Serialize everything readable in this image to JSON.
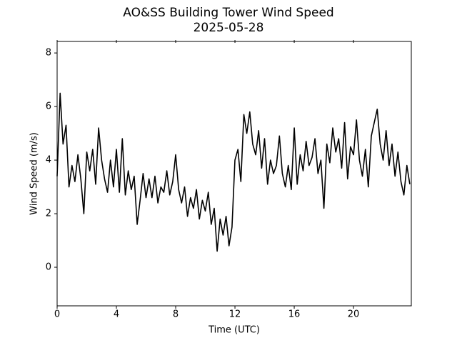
{
  "chart_data": {
    "type": "line",
    "title": "AO&SS Building Tower Wind Speed",
    "subtitle": "2025-05-28",
    "x_label": "Time (UTC)",
    "y_label": "Wind Speed (m/s)",
    "color": "#000000",
    "x": [
      0,
      0.2,
      0.4,
      0.6,
      0.8,
      1.0,
      1.2,
      1.4,
      1.6,
      1.8,
      2.0,
      2.2,
      2.4,
      2.6,
      2.8,
      3.0,
      3.2,
      3.4,
      3.6,
      3.8,
      4.0,
      4.2,
      4.4,
      4.6,
      4.8,
      5.0,
      5.2,
      5.4,
      5.6,
      5.8,
      6.0,
      6.2,
      6.4,
      6.6,
      6.8,
      7.0,
      7.2,
      7.4,
      7.6,
      7.8,
      8.0,
      8.2,
      8.4,
      8.6,
      8.8,
      9.0,
      9.2,
      9.4,
      9.6,
      9.8,
      10.0,
      10.2,
      10.4,
      10.6,
      10.8,
      11.0,
      11.2,
      11.4,
      11.6,
      11.8,
      12.0,
      12.2,
      12.4,
      12.6,
      12.8,
      13.0,
      13.2,
      13.4,
      13.6,
      13.8,
      14.0,
      14.2,
      14.4,
      14.6,
      14.8,
      15.0,
      15.2,
      15.4,
      15.6,
      15.8,
      16.0,
      16.2,
      16.4,
      16.6,
      16.8,
      17.0,
      17.2,
      17.4,
      17.6,
      17.8,
      18.0,
      18.2,
      18.4,
      18.6,
      18.8,
      19.0,
      19.2,
      19.4,
      19.6,
      19.8,
      20.0,
      20.2,
      20.4,
      20.6,
      20.8,
      21.0,
      21.2,
      21.4,
      21.6,
      21.8,
      22.0,
      22.2,
      22.4,
      22.6,
      22.8,
      23.0,
      23.2,
      23.4,
      23.6,
      23.8
    ],
    "values": [
      3.4,
      6.5,
      4.6,
      5.3,
      3.0,
      3.8,
      3.2,
      4.2,
      3.3,
      2.0,
      4.3,
      3.6,
      4.4,
      3.1,
      5.2,
      4.0,
      3.3,
      2.8,
      4.0,
      3.0,
      4.4,
      2.8,
      4.8,
      2.7,
      3.6,
      2.9,
      3.4,
      1.6,
      2.5,
      3.5,
      2.6,
      3.3,
      2.6,
      3.4,
      2.4,
      3.0,
      2.8,
      3.6,
      2.7,
      3.2,
      4.2,
      2.9,
      2.4,
      3.0,
      1.9,
      2.6,
      2.2,
      2.9,
      1.8,
      2.5,
      2.1,
      2.8,
      1.6,
      2.2,
      0.6,
      1.8,
      1.2,
      1.9,
      0.8,
      1.5,
      4.0,
      4.4,
      3.2,
      5.7,
      5.0,
      5.8,
      4.6,
      4.2,
      5.1,
      3.7,
      4.8,
      3.1,
      4.0,
      3.5,
      3.8,
      4.9,
      3.5,
      3.0,
      3.8,
      2.9,
      5.2,
      3.1,
      4.2,
      3.6,
      4.7,
      3.8,
      4.1,
      4.8,
      3.5,
      4.0,
      2.2,
      4.6,
      3.9,
      5.2,
      4.3,
      4.8,
      3.7,
      5.4,
      3.3,
      4.5,
      4.2,
      5.5,
      4.0,
      3.4,
      4.4,
      3.0,
      4.9,
      5.4,
      5.9,
      4.6,
      4.0,
      5.1,
      3.8,
      4.6,
      3.4,
      4.3,
      3.2,
      2.7,
      3.8,
      3.1
    ],
    "xlim": [
      0,
      23.9
    ],
    "xticks": [
      0,
      4,
      8,
      12,
      16,
      20
    ],
    "ylim": [
      -1.44,
      8.43
    ],
    "yticks": [
      0,
      2,
      4,
      6,
      8
    ]
  }
}
